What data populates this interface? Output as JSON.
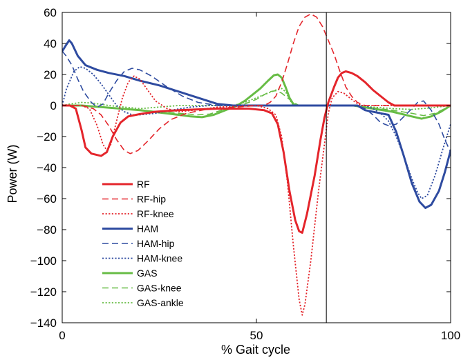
{
  "chart_data": {
    "type": "line",
    "title": "",
    "xlabel": "% Gait cycle",
    "ylabel": "Power (W)",
    "xlim": [
      0,
      100
    ],
    "ylim": [
      -140,
      60
    ],
    "xticks": [
      "0",
      "50",
      "100"
    ],
    "yticks": [
      "60",
      "40",
      "20",
      "0",
      "−20",
      "−40",
      "−60",
      "−80",
      "−100",
      "−120",
      "−140"
    ],
    "xtick_values": [
      0,
      50,
      100
    ],
    "ytick_values": [
      60,
      40,
      20,
      0,
      -20,
      -40,
      -60,
      -80,
      -100,
      -120,
      -140
    ],
    "vertical_line_x": 68,
    "grid": false,
    "legend_position": "lower-left",
    "series": [
      {
        "name": "RF",
        "color": "#e4252b",
        "style": "solid",
        "width": 3,
        "points": [
          [
            0,
            0
          ],
          [
            2,
            0
          ],
          [
            3.5,
            -2
          ],
          [
            5,
            -16
          ],
          [
            6,
            -27
          ],
          [
            7.5,
            -31
          ],
          [
            10,
            -32.5
          ],
          [
            11.5,
            -30
          ],
          [
            13,
            -20
          ],
          [
            15,
            -11
          ],
          [
            17,
            -7
          ],
          [
            20,
            -5.5
          ],
          [
            24,
            -4
          ],
          [
            30,
            -3
          ],
          [
            40,
            -2
          ],
          [
            48,
            -2
          ],
          [
            52,
            -3
          ],
          [
            54,
            -5
          ],
          [
            55.5,
            -12
          ],
          [
            57,
            -30
          ],
          [
            58.5,
            -55
          ],
          [
            60,
            -74
          ],
          [
            61,
            -81
          ],
          [
            61.8,
            -82
          ],
          [
            63,
            -70
          ],
          [
            65,
            -45
          ],
          [
            66.5,
            -22
          ],
          [
            67.5,
            -8
          ],
          [
            68.5,
            2
          ],
          [
            70,
            12
          ],
          [
            71,
            18
          ],
          [
            72,
            21
          ],
          [
            73,
            22
          ],
          [
            74.5,
            21
          ],
          [
            76,
            19
          ],
          [
            78,
            15
          ],
          [
            80,
            10
          ],
          [
            82,
            6
          ],
          [
            84,
            2
          ],
          [
            85.5,
            0
          ],
          [
            100,
            0
          ]
        ]
      },
      {
        "name": "RF-hip",
        "color": "#e4252b",
        "style": "dashed",
        "width": 1.6,
        "points": [
          [
            0,
            0
          ],
          [
            5,
            0
          ],
          [
            8,
            -2
          ],
          [
            10,
            -6
          ],
          [
            12,
            -13
          ],
          [
            14,
            -22
          ],
          [
            16,
            -29
          ],
          [
            17.5,
            -31
          ],
          [
            19.5,
            -29
          ],
          [
            22,
            -23
          ],
          [
            25,
            -15
          ],
          [
            28,
            -9
          ],
          [
            32,
            -5
          ],
          [
            38,
            -2
          ],
          [
            45,
            -1
          ],
          [
            50,
            0
          ],
          [
            52,
            0
          ],
          [
            53.5,
            2
          ],
          [
            55,
            6
          ],
          [
            56.5,
            15
          ],
          [
            58,
            27
          ],
          [
            59.5,
            40
          ],
          [
            61,
            51
          ],
          [
            62.5,
            57
          ],
          [
            64,
            59
          ],
          [
            65.5,
            57
          ],
          [
            67,
            51
          ],
          [
            68.5,
            42
          ],
          [
            70,
            33
          ],
          [
            71.5,
            22
          ],
          [
            73,
            12
          ],
          [
            74.5,
            6
          ],
          [
            76,
            2
          ],
          [
            78,
            0
          ],
          [
            100,
            0
          ]
        ]
      },
      {
        "name": "RF-knee",
        "color": "#e4252b",
        "style": "dotted",
        "width": 1.8,
        "points": [
          [
            0,
            0
          ],
          [
            5,
            0
          ],
          [
            7,
            -2
          ],
          [
            9,
            -13
          ],
          [
            10.5,
            -25
          ],
          [
            11.5,
            -29
          ],
          [
            12.5,
            -25
          ],
          [
            14,
            -10
          ],
          [
            15.5,
            5
          ],
          [
            17,
            15
          ],
          [
            18.5,
            19
          ],
          [
            20,
            17
          ],
          [
            22,
            10
          ],
          [
            24,
            3
          ],
          [
            27,
            -2
          ],
          [
            30,
            -4
          ],
          [
            34,
            -3
          ],
          [
            40,
            -1
          ],
          [
            50,
            0
          ],
          [
            53,
            -2
          ],
          [
            55,
            -6
          ],
          [
            56.5,
            -20
          ],
          [
            58,
            -50
          ],
          [
            59.5,
            -90
          ],
          [
            61,
            -125
          ],
          [
            61.8,
            -135
          ],
          [
            62.5,
            -128
          ],
          [
            64,
            -100
          ],
          [
            66,
            -55
          ],
          [
            67.5,
            -25
          ],
          [
            68.5,
            -5
          ],
          [
            69.5,
            5
          ],
          [
            71,
            9
          ],
          [
            72.5,
            8
          ],
          [
            74,
            5
          ],
          [
            75.5,
            2
          ],
          [
            77,
            0
          ],
          [
            100,
            0
          ]
        ]
      },
      {
        "name": "HAM",
        "color": "#2e4ba0",
        "style": "solid",
        "width": 3,
        "points": [
          [
            0,
            35
          ],
          [
            1,
            39
          ],
          [
            1.8,
            42
          ],
          [
            2.5,
            40
          ],
          [
            4,
            32
          ],
          [
            6,
            26
          ],
          [
            9,
            23
          ],
          [
            12,
            21
          ],
          [
            16,
            19
          ],
          [
            20,
            16
          ],
          [
            25,
            13
          ],
          [
            30,
            9
          ],
          [
            35,
            5
          ],
          [
            40,
            1
          ],
          [
            44,
            0
          ],
          [
            50,
            0
          ],
          [
            60,
            0
          ],
          [
            70,
            0
          ],
          [
            76,
            0
          ],
          [
            78,
            -3
          ],
          [
            82,
            -5
          ],
          [
            84,
            -6
          ],
          [
            86,
            -17
          ],
          [
            88,
            -33
          ],
          [
            90,
            -50
          ],
          [
            92,
            -62
          ],
          [
            93.5,
            -66
          ],
          [
            95,
            -64
          ],
          [
            97,
            -55
          ],
          [
            98.5,
            -43
          ],
          [
            100,
            -29
          ]
        ]
      },
      {
        "name": "HAM-hip",
        "color": "#2e4ba0",
        "style": "dashed",
        "width": 1.6,
        "points": [
          [
            0,
            35
          ],
          [
            1,
            32
          ],
          [
            2.5,
            26
          ],
          [
            4,
            17
          ],
          [
            5.5,
            9
          ],
          [
            7.5,
            2
          ],
          [
            9,
            -1
          ],
          [
            10.5,
            1
          ],
          [
            12,
            8
          ],
          [
            14,
            16
          ],
          [
            16,
            22
          ],
          [
            18,
            24
          ],
          [
            20,
            23
          ],
          [
            23,
            19
          ],
          [
            27,
            12
          ],
          [
            31,
            6
          ],
          [
            35,
            2
          ],
          [
            40,
            0
          ],
          [
            50,
            0
          ],
          [
            60,
            0
          ],
          [
            70,
            0
          ],
          [
            76,
            0
          ],
          [
            78,
            -2
          ],
          [
            80,
            -6
          ],
          [
            82,
            -11
          ],
          [
            84,
            -13
          ],
          [
            86,
            -12
          ],
          [
            88,
            -7
          ],
          [
            90,
            -2
          ],
          [
            91.5,
            2
          ],
          [
            93,
            3
          ],
          [
            95,
            -3
          ],
          [
            97,
            -12
          ],
          [
            98.5,
            -22
          ],
          [
            100,
            -30
          ]
        ]
      },
      {
        "name": "HAM-knee",
        "color": "#2e4ba0",
        "style": "dotted",
        "width": 1.8,
        "points": [
          [
            0,
            0
          ],
          [
            1,
            10
          ],
          [
            2,
            16
          ],
          [
            3,
            22
          ],
          [
            4.5,
            25
          ],
          [
            6,
            24
          ],
          [
            8,
            20
          ],
          [
            10,
            14
          ],
          [
            12,
            7
          ],
          [
            14,
            0
          ],
          [
            16,
            -4
          ],
          [
            18,
            -6
          ],
          [
            20,
            -6
          ],
          [
            24,
            -5
          ],
          [
            28,
            -3
          ],
          [
            33,
            -1
          ],
          [
            38,
            0
          ],
          [
            50,
            0
          ],
          [
            60,
            0
          ],
          [
            70,
            0
          ],
          [
            78,
            0
          ],
          [
            80,
            -2
          ],
          [
            82,
            -5
          ],
          [
            84,
            -10
          ],
          [
            86,
            -20
          ],
          [
            88,
            -33
          ],
          [
            90,
            -47
          ],
          [
            91.5,
            -56
          ],
          [
            92.5,
            -60
          ],
          [
            94,
            -58
          ],
          [
            96,
            -45
          ],
          [
            98,
            -28
          ],
          [
            100,
            -12
          ]
        ]
      },
      {
        "name": "GAS",
        "color": "#67bc45",
        "style": "solid",
        "width": 3,
        "points": [
          [
            0,
            0
          ],
          [
            5,
            0
          ],
          [
            10,
            -1
          ],
          [
            15,
            -2
          ],
          [
            20,
            -3
          ],
          [
            25,
            -4.5
          ],
          [
            30,
            -6
          ],
          [
            33,
            -7
          ],
          [
            36,
            -7.5
          ],
          [
            39,
            -6
          ],
          [
            42,
            -3
          ],
          [
            45,
            0
          ],
          [
            47,
            3
          ],
          [
            49,
            7
          ],
          [
            51,
            11
          ],
          [
            53,
            16
          ],
          [
            54.5,
            19.5
          ],
          [
            55.5,
            20
          ],
          [
            56.5,
            18
          ],
          [
            57.5,
            12
          ],
          [
            58.5,
            5
          ],
          [
            59.5,
            1
          ],
          [
            60.5,
            0
          ],
          [
            75,
            0
          ],
          [
            80,
            -2
          ],
          [
            85,
            -4
          ],
          [
            90,
            -7
          ],
          [
            92.5,
            -8.5
          ],
          [
            95,
            -7
          ],
          [
            97.5,
            -4
          ],
          [
            100,
            0
          ]
        ]
      },
      {
        "name": "GAS-knee",
        "color": "#67bc45",
        "style": "dashed",
        "width": 1.6,
        "points": [
          [
            0,
            0
          ],
          [
            5,
            0
          ],
          [
            10,
            -1
          ],
          [
            15,
            -2
          ],
          [
            20,
            -3
          ],
          [
            25,
            -4
          ],
          [
            30,
            -5
          ],
          [
            35,
            -6
          ],
          [
            38,
            -5.5
          ],
          [
            41,
            -3
          ],
          [
            44,
            -1
          ],
          [
            47,
            1
          ],
          [
            50,
            4
          ],
          [
            52,
            7
          ],
          [
            53.5,
            9
          ],
          [
            55,
            9.5
          ],
          [
            56.5,
            8
          ],
          [
            58,
            5
          ],
          [
            59.5,
            2
          ],
          [
            61,
            0
          ],
          [
            75,
            0
          ],
          [
            80,
            -1.5
          ],
          [
            85,
            -3
          ],
          [
            90,
            -5
          ],
          [
            93,
            -6.5
          ],
          [
            96,
            -5
          ],
          [
            98.5,
            -2
          ],
          [
            100,
            0
          ]
        ]
      },
      {
        "name": "GAS-ankle",
        "color": "#67bc45",
        "style": "dotted",
        "width": 1.8,
        "points": [
          [
            0,
            0
          ],
          [
            2,
            1
          ],
          [
            5,
            2
          ],
          [
            8,
            1.5
          ],
          [
            12,
            0
          ],
          [
            16,
            -1
          ],
          [
            20,
            -2
          ],
          [
            25,
            -1
          ],
          [
            30,
            0
          ],
          [
            35,
            0
          ],
          [
            40,
            0
          ],
          [
            44,
            0
          ],
          [
            47,
            2
          ],
          [
            50,
            5
          ],
          [
            53,
            8
          ],
          [
            55,
            10
          ],
          [
            56.5,
            11
          ],
          [
            57.5,
            9
          ],
          [
            58.5,
            4
          ],
          [
            59.5,
            0
          ],
          [
            75,
            0
          ],
          [
            80,
            -1
          ],
          [
            85,
            -2
          ],
          [
            90,
            -2.5
          ],
          [
            95,
            -1.5
          ],
          [
            100,
            0
          ]
        ]
      }
    ]
  }
}
